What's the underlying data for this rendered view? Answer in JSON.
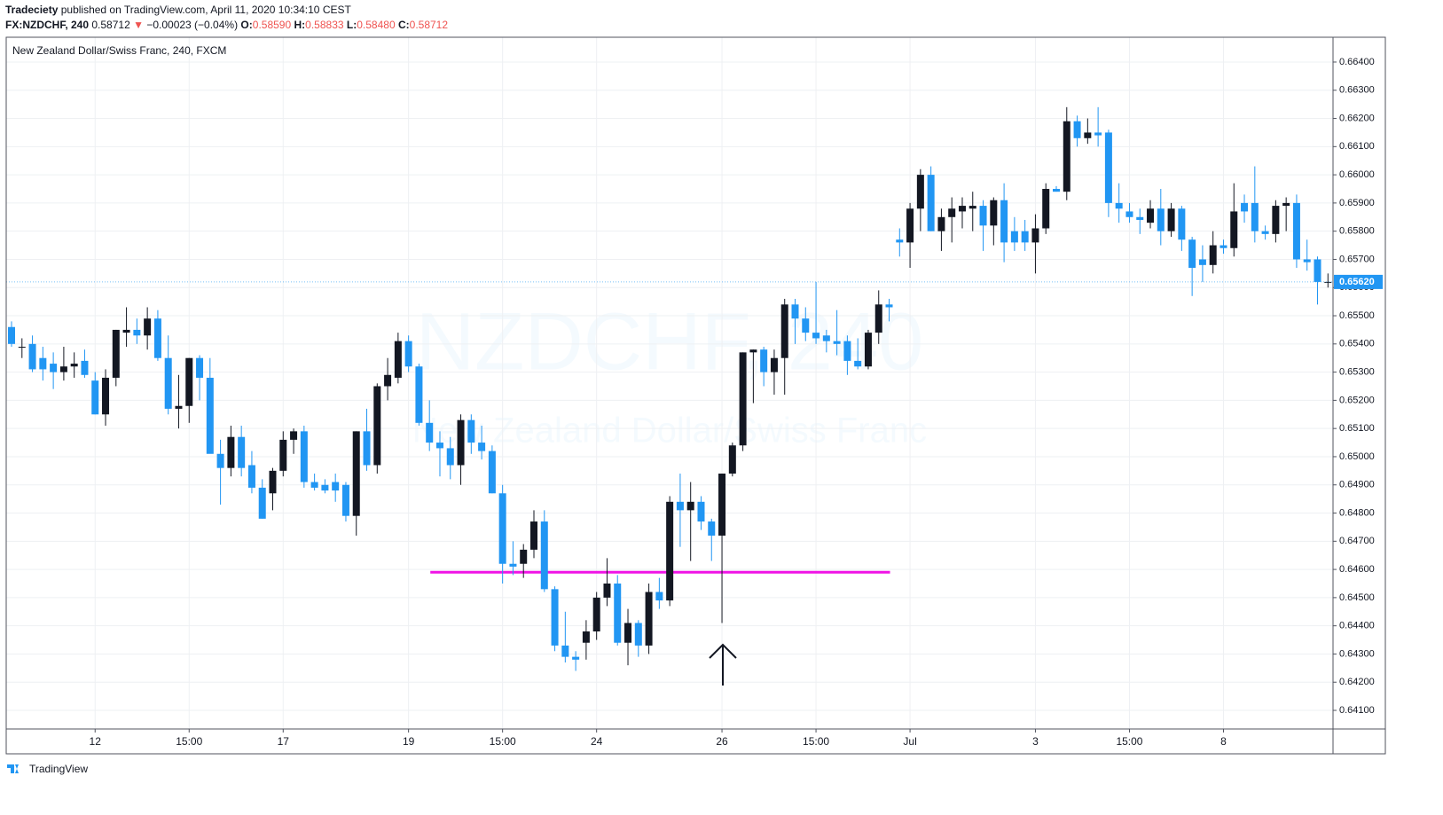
{
  "header": {
    "publisher": "Tradeciety",
    "published": "published on TradingView.com, April 11, 2020 10:34:10 CEST",
    "symbol": "FX:NZDCHF, 240",
    "last": "0.58712",
    "change_arrow": "▼",
    "change": "−0.00023 (−0.04%)",
    "ohlc_labels": [
      "O:",
      "H:",
      "L:",
      "C:"
    ],
    "ohlc_values": [
      "0.58590",
      "0.58833",
      "0.58480",
      "0.58712"
    ]
  },
  "footer": {
    "brand": "TradingView"
  },
  "chart_data": {
    "type": "candlestick",
    "title": "New Zealand Dollar/Swiss Franc, 240, FXCM",
    "watermark": [
      "NZDCHF, 240",
      "New Zealand Dollar/Swiss Franc"
    ],
    "up_color": "#131722",
    "down_color": "#2196f3",
    "grid": true,
    "categories": [
      null,
      null,
      null,
      null,
      null,
      null,
      null,
      null,
      "12",
      null,
      null,
      null,
      null,
      null,
      null,
      null,
      null,
      "15:00",
      null,
      null,
      null,
      null,
      null,
      null,
      null,
      null,
      "17",
      null,
      null,
      null,
      null,
      null,
      null,
      null,
      null,
      null,
      null,
      null,
      "19",
      null,
      null,
      null,
      null,
      null,
      null,
      null,
      null,
      "15:00",
      null,
      null,
      null,
      null,
      null,
      null,
      null,
      null,
      "24",
      null,
      null,
      null,
      null,
      null,
      null,
      null,
      null,
      null,
      null,
      null,
      "26",
      null,
      null,
      null,
      null,
      null,
      null,
      null,
      null,
      "15:00",
      null,
      null,
      null,
      null,
      null,
      null,
      null,
      null,
      "Jul",
      null,
      null,
      null,
      null,
      null,
      null,
      null,
      null,
      null,
      null,
      null,
      "3",
      null,
      null,
      null,
      null,
      null,
      null,
      null,
      null,
      "15:00",
      null,
      null,
      null,
      null,
      null,
      null,
      null,
      null,
      "8",
      null,
      null,
      null,
      null,
      null,
      null,
      null,
      null,
      null,
      null
    ],
    "ohlc": [
      [
        0.6546,
        0.6548,
        0.6539,
        0.654
      ],
      [
        0.6539,
        0.6542,
        0.6535,
        0.6539
      ],
      [
        0.654,
        0.6543,
        0.653,
        0.6531
      ],
      [
        0.6535,
        0.6539,
        0.6527,
        0.6531
      ],
      [
        0.6533,
        0.6537,
        0.6524,
        0.653
      ],
      [
        0.653,
        0.6539,
        0.6527,
        0.6532
      ],
      [
        0.6532,
        0.6537,
        0.6528,
        0.6533
      ],
      [
        0.6534,
        0.6538,
        0.6528,
        0.6529
      ],
      [
        0.6527,
        0.653,
        0.6515,
        0.6515
      ],
      [
        0.6515,
        0.6531,
        0.6511,
        0.6528
      ],
      [
        0.6528,
        0.6545,
        0.6525,
        0.6545
      ],
      [
        0.6544,
        0.6553,
        0.6539,
        0.6545
      ],
      [
        0.6545,
        0.6549,
        0.654,
        0.6543
      ],
      [
        0.6543,
        0.6553,
        0.6538,
        0.6549
      ],
      [
        0.6549,
        0.6552,
        0.6534,
        0.6535
      ],
      [
        0.6535,
        0.6543,
        0.6515,
        0.6517
      ],
      [
        0.6517,
        0.6529,
        0.651,
        0.6518
      ],
      [
        0.6518,
        0.6535,
        0.6512,
        0.6535
      ],
      [
        0.6535,
        0.6536,
        0.652,
        0.6528
      ],
      [
        0.6528,
        0.6535,
        0.6502,
        0.6501
      ],
      [
        0.6501,
        0.6506,
        0.6483,
        0.6496
      ],
      [
        0.6496,
        0.6511,
        0.6493,
        0.6507
      ],
      [
        0.6507,
        0.6511,
        0.6493,
        0.6496
      ],
      [
        0.6497,
        0.6502,
        0.6487,
        0.6489
      ],
      [
        0.6489,
        0.6492,
        0.6478,
        0.6478
      ],
      [
        0.6487,
        0.6496,
        0.6481,
        0.6495
      ],
      [
        0.6495,
        0.6509,
        0.6493,
        0.6506
      ],
      [
        0.6506,
        0.651,
        0.6501,
        0.6509
      ],
      [
        0.6509,
        0.6511,
        0.6489,
        0.6491
      ],
      [
        0.6491,
        0.6494,
        0.6488,
        0.6489
      ],
      [
        0.649,
        0.6492,
        0.6487,
        0.6488
      ],
      [
        0.6491,
        0.6494,
        0.6484,
        0.6488
      ],
      [
        0.649,
        0.6491,
        0.6477,
        0.6479
      ],
      [
        0.6479,
        0.6509,
        0.6472,
        0.6509
      ],
      [
        0.6509,
        0.6517,
        0.6495,
        0.6497
      ],
      [
        0.6497,
        0.6526,
        0.6494,
        0.6525
      ],
      [
        0.6525,
        0.6535,
        0.652,
        0.6529
      ],
      [
        0.6528,
        0.6544,
        0.6526,
        0.6541
      ],
      [
        0.6541,
        0.6543,
        0.653,
        0.6532
      ],
      [
        0.6532,
        0.6533,
        0.6511,
        0.6512
      ],
      [
        0.6512,
        0.652,
        0.6502,
        0.6505
      ],
      [
        0.6505,
        0.6509,
        0.6493,
        0.6503
      ],
      [
        0.6503,
        0.6507,
        0.6492,
        0.6497
      ],
      [
        0.6497,
        0.6515,
        0.649,
        0.6513
      ],
      [
        0.6513,
        0.6515,
        0.6501,
        0.6505
      ],
      [
        0.6505,
        0.6511,
        0.6499,
        0.6502
      ],
      [
        0.6502,
        0.6504,
        0.6487,
        0.6487
      ],
      [
        0.6487,
        0.649,
        0.6455,
        0.6462
      ],
      [
        0.6462,
        0.647,
        0.6458,
        0.6461
      ],
      [
        0.6462,
        0.6469,
        0.6457,
        0.6467
      ],
      [
        0.6467,
        0.6481,
        0.6464,
        0.6477
      ],
      [
        0.6477,
        0.6481,
        0.6452,
        0.6453
      ],
      [
        0.6453,
        0.6454,
        0.6431,
        0.6433
      ],
      [
        0.6433,
        0.6445,
        0.6427,
        0.6429
      ],
      [
        0.6429,
        0.6431,
        0.6424,
        0.6428
      ],
      [
        0.6434,
        0.6442,
        0.6428,
        0.6438
      ],
      [
        0.6438,
        0.6452,
        0.6435,
        0.645
      ],
      [
        0.645,
        0.6464,
        0.6447,
        0.6455
      ],
      [
        0.6455,
        0.6458,
        0.6433,
        0.6434
      ],
      [
        0.6434,
        0.6446,
        0.6426,
        0.6441
      ],
      [
        0.6441,
        0.6442,
        0.6429,
        0.6433
      ],
      [
        0.6433,
        0.6455,
        0.643,
        0.6452
      ],
      [
        0.6452,
        0.6457,
        0.6446,
        0.6449
      ],
      [
        0.6449,
        0.6486,
        0.6447,
        0.6484
      ],
      [
        0.6484,
        0.6494,
        0.6468,
        0.6481
      ],
      [
        0.6481,
        0.6491,
        0.6463,
        0.6484
      ],
      [
        0.6484,
        0.6486,
        0.6474,
        0.6477
      ],
      [
        0.6477,
        0.6478,
        0.6463,
        0.6472
      ],
      [
        0.6472,
        0.6494,
        0.6441,
        0.6494
      ],
      [
        0.6494,
        0.6505,
        0.6493,
        0.6504
      ],
      [
        0.6504,
        0.6537,
        0.6502,
        0.6537
      ],
      [
        0.6537,
        0.6538,
        0.6519,
        0.6538
      ],
      [
        0.6538,
        0.6539,
        0.6525,
        0.653
      ],
      [
        0.653,
        0.6538,
        0.6522,
        0.6535
      ],
      [
        0.6535,
        0.6556,
        0.6522,
        0.6554
      ],
      [
        0.6554,
        0.6556,
        0.654,
        0.6549
      ],
      [
        0.6549,
        0.6553,
        0.6541,
        0.6544
      ],
      [
        0.6544,
        0.6562,
        0.654,
        0.6542
      ],
      [
        0.6543,
        0.6545,
        0.6537,
        0.6541
      ],
      [
        0.6541,
        0.6552,
        0.6536,
        0.654
      ],
      [
        0.6541,
        0.6543,
        0.6529,
        0.6534
      ],
      [
        0.6534,
        0.6542,
        0.6531,
        0.6532
      ],
      [
        0.6532,
        0.6545,
        0.6531,
        0.6544
      ],
      [
        0.6544,
        0.6559,
        0.654,
        0.6554
      ],
      [
        0.6554,
        0.6556,
        0.6548,
        0.6553
      ],
      [
        0.6577,
        0.6581,
        0.6571,
        0.6576
      ],
      [
        0.6576,
        0.659,
        0.6567,
        0.6588
      ],
      [
        0.6588,
        0.6602,
        0.658,
        0.66
      ],
      [
        0.66,
        0.6603,
        0.658,
        0.658
      ],
      [
        0.658,
        0.6588,
        0.6573,
        0.6585
      ],
      [
        0.6585,
        0.6592,
        0.6576,
        0.6588
      ],
      [
        0.6587,
        0.6592,
        0.6581,
        0.6589
      ],
      [
        0.6588,
        0.6594,
        0.658,
        0.6589
      ],
      [
        0.6589,
        0.6591,
        0.6573,
        0.6582
      ],
      [
        0.6582,
        0.6592,
        0.6575,
        0.6591
      ],
      [
        0.6591,
        0.6597,
        0.6569,
        0.6576
      ],
      [
        0.658,
        0.6585,
        0.6573,
        0.6576
      ],
      [
        0.658,
        0.6584,
        0.6573,
        0.6576
      ],
      [
        0.6576,
        0.6586,
        0.6565,
        0.6581
      ],
      [
        0.6581,
        0.6597,
        0.6579,
        0.6595
      ],
      [
        0.6595,
        0.6596,
        0.6594,
        0.6594
      ],
      [
        0.6594,
        0.6624,
        0.6591,
        0.6619
      ],
      [
        0.6619,
        0.6621,
        0.661,
        0.6613
      ],
      [
        0.6613,
        0.662,
        0.6611,
        0.6615
      ],
      [
        0.6615,
        0.6624,
        0.661,
        0.6614
      ],
      [
        0.6615,
        0.6616,
        0.6585,
        0.659
      ],
      [
        0.659,
        0.6597,
        0.6583,
        0.6588
      ],
      [
        0.6587,
        0.659,
        0.6583,
        0.6585
      ],
      [
        0.6585,
        0.6588,
        0.6579,
        0.6584
      ],
      [
        0.6583,
        0.6591,
        0.6581,
        0.6588
      ],
      [
        0.6588,
        0.6595,
        0.6575,
        0.658
      ],
      [
        0.658,
        0.659,
        0.6578,
        0.6588
      ],
      [
        0.6588,
        0.6589,
        0.6573,
        0.6577
      ],
      [
        0.6577,
        0.6578,
        0.6557,
        0.6567
      ],
      [
        0.657,
        0.6575,
        0.6562,
        0.6568
      ],
      [
        0.6568,
        0.658,
        0.6565,
        0.6575
      ],
      [
        0.6575,
        0.6577,
        0.6572,
        0.6574
      ],
      [
        0.6574,
        0.6597,
        0.6571,
        0.6587
      ],
      [
        0.659,
        0.6593,
        0.6583,
        0.6587
      ],
      [
        0.659,
        0.6603,
        0.6576,
        0.658
      ],
      [
        0.658,
        0.6582,
        0.6577,
        0.6579
      ],
      [
        0.6579,
        0.6591,
        0.6576,
        0.6589
      ],
      [
        0.6589,
        0.6592,
        0.658,
        0.659
      ],
      [
        0.659,
        0.6593,
        0.6567,
        0.657
      ],
      [
        0.657,
        0.6577,
        0.6566,
        0.6569
      ],
      [
        0.657,
        0.6571,
        0.6554,
        0.6562
      ],
      [
        0.6562,
        0.6565,
        0.656,
        0.6562
      ]
    ],
    "level": {
      "value": 0.6459,
      "color": "#f013e6"
    },
    "last_price": {
      "value": 0.6562,
      "label": "0.65620"
    },
    "ylim": [
      0.64034,
      0.66488
    ],
    "yticks": [
      {
        "value": 0.641,
        "label": "0.64100"
      },
      {
        "value": 0.642,
        "label": "0.64200"
      },
      {
        "value": 0.643,
        "label": "0.64300"
      },
      {
        "value": 0.644,
        "label": "0.64400"
      },
      {
        "value": 0.645,
        "label": "0.64500"
      },
      {
        "value": 0.646,
        "label": "0.64600"
      },
      {
        "value": 0.647,
        "label": "0.64700"
      },
      {
        "value": 0.648,
        "label": "0.64800"
      },
      {
        "value": 0.649,
        "label": "0.64900"
      },
      {
        "value": 0.65,
        "label": "0.65000"
      },
      {
        "value": 0.651,
        "label": "0.65100"
      },
      {
        "value": 0.652,
        "label": "0.65200"
      },
      {
        "value": 0.653,
        "label": "0.65300"
      },
      {
        "value": 0.654,
        "label": "0.65400"
      },
      {
        "value": 0.655,
        "label": "0.65500"
      },
      {
        "value": 0.656,
        "label": "0.65600"
      },
      {
        "value": 0.657,
        "label": "0.65700"
      },
      {
        "value": 0.658,
        "label": "0.65800"
      },
      {
        "value": 0.659,
        "label": "0.65900"
      },
      {
        "value": 0.66,
        "label": "0.66000"
      },
      {
        "value": 0.661,
        "label": "0.66100"
      },
      {
        "value": 0.662,
        "label": "0.66200"
      },
      {
        "value": 0.663,
        "label": "0.66300"
      },
      {
        "value": 0.664,
        "label": "0.66400"
      }
    ]
  }
}
